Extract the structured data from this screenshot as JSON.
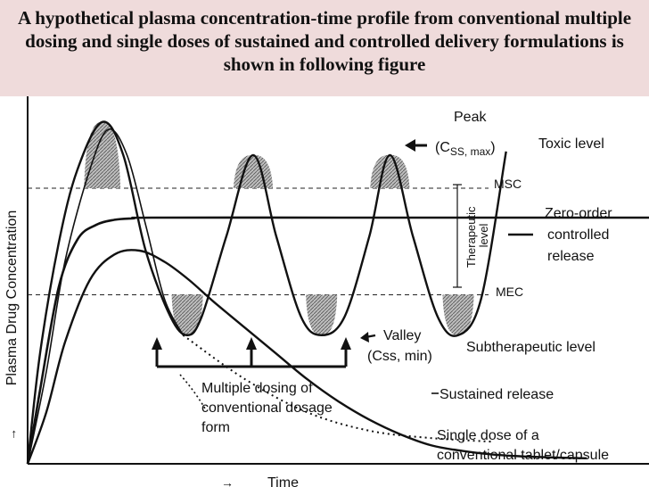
{
  "header": {
    "title": "A hypothetical plasma concentration-time profile from conventional multiple dosing and single doses of sustained and controlled delivery formulations is shown in following figure"
  },
  "chart_data": {
    "type": "line",
    "title": "",
    "xlabel": "Time",
    "ylabel": "Plasma Drug Concentration",
    "x_unit": "relative time (0–100)",
    "y_unit": "relative concentration (0–100)",
    "xlim": [
      0,
      100
    ],
    "ylim": [
      0,
      100
    ],
    "grid": false,
    "thresholds": [
      {
        "label": "MSC",
        "y": 75
      },
      {
        "label": "MEC",
        "y": 46
      }
    ],
    "series": [
      {
        "name": "Multiple dosing of conventional dosage form",
        "x": [
          0,
          2,
          5,
          8,
          12,
          15.4,
          19,
          23,
          25.7,
          28,
          32,
          36.3,
          40,
          44,
          47.3,
          51,
          55,
          58.3,
          62,
          66,
          69.3,
          73,
          77
        ],
        "y": [
          0,
          30,
          60,
          80,
          93,
          84,
          58,
          40,
          35,
          40,
          62,
          84,
          62,
          40,
          35,
          40,
          62,
          84,
          62,
          40,
          35,
          45,
          85
        ]
      },
      {
        "name": "Zero-order controlled release",
        "x": [
          0,
          2,
          5,
          8,
          11,
          14,
          17,
          20,
          50,
          80,
          100
        ],
        "y": [
          0,
          20,
          48,
          61,
          65,
          66.4,
          66.8,
          67,
          67,
          67,
          67
        ]
      },
      {
        "name": "Sustained release",
        "x": [
          0,
          3,
          6,
          10,
          14,
          18,
          22,
          26,
          30,
          35,
          40,
          45,
          50,
          55,
          60,
          65,
          70,
          75,
          80,
          85,
          90
        ],
        "y": [
          0,
          14,
          33,
          50,
          57,
          58,
          55,
          50,
          44,
          37,
          30,
          23,
          17,
          12,
          8,
          5,
          3.5,
          2.5,
          2,
          1.7,
          1.5
        ]
      },
      {
        "name": "Single dose of a conventional tablet/capsule",
        "x": [
          0,
          3,
          6,
          10,
          13,
          16,
          19,
          22,
          25
        ],
        "y": [
          0,
          25,
          55,
          80,
          91,
          84,
          65,
          45,
          35
        ]
      }
    ],
    "annotations": [
      {
        "text": "Peak",
        "at": "top-right of last peak"
      },
      {
        "text": "(C",
        "sub": "SS, max",
        "close": ")"
      },
      {
        "text": "Toxic level"
      },
      {
        "text": "Therapeutic level"
      },
      {
        "text": "Zero-order controlled release"
      },
      {
        "text": "Valley"
      },
      {
        "text": "(Css, min)"
      },
      {
        "text": "Subtherapeutic level"
      },
      {
        "text": "Multiple dosing of conventional dosage form"
      },
      {
        "text": "Sustained release"
      },
      {
        "text": "Single dose of a conventional tablet/capsule"
      }
    ],
    "labels": {
      "peak": "Peak",
      "css_max_prefix": "(C",
      "css_max_sub": "SS, max",
      "css_max_suffix": ")",
      "toxic": "Toxic level",
      "msc": "MSC",
      "mec": "MEC",
      "therapeutic_1": "Therapeutic",
      "therapeutic_2": "level",
      "zero_order_1": "Zero-order",
      "zero_order_2": "controlled",
      "zero_order_3": "release",
      "valley": "Valley",
      "css_min": "(Css, min)",
      "subtherapeutic": "Subtherapeutic level",
      "multiple_1": "Multiple dosing of",
      "multiple_2": "conventional dosage",
      "multiple_3": "form",
      "sustained": "Sustained release",
      "single_1": "Single dose of a",
      "single_2": "conventional tablet/capsule"
    },
    "colors": {
      "line": "#111111",
      "shade": "#9a9a9a"
    }
  }
}
